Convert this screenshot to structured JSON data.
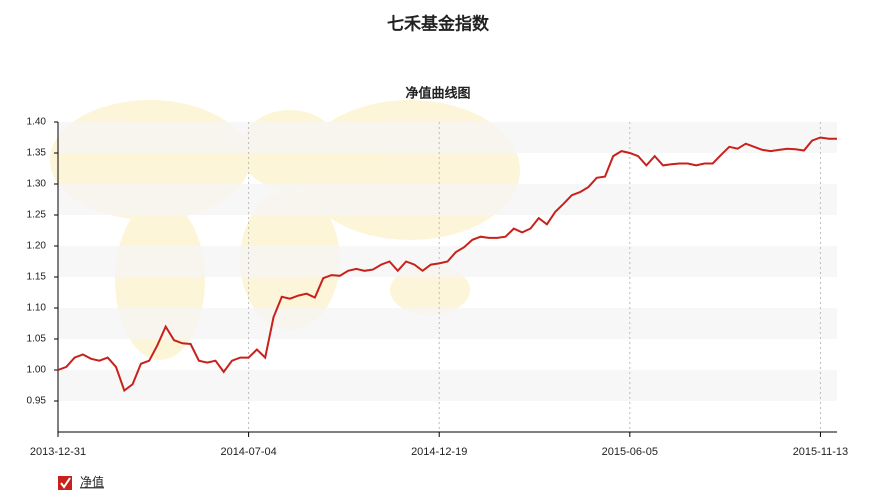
{
  "chart_data": {
    "type": "line",
    "title": "七禾基金指数",
    "subtitle": "净值曲线图",
    "categories": [
      "2013-12-31",
      null,
      null,
      null,
      null,
      null,
      null,
      null,
      null,
      null,
      null,
      null,
      null,
      null,
      null,
      null,
      null,
      null,
      null,
      null,
      null,
      null,
      null,
      "2014-07-04",
      null,
      null,
      null,
      null,
      null,
      null,
      null,
      null,
      null,
      null,
      null,
      null,
      null,
      null,
      null,
      null,
      null,
      null,
      null,
      null,
      null,
      null,
      "2014-12-19",
      null,
      null,
      null,
      null,
      null,
      null,
      null,
      null,
      null,
      null,
      null,
      null,
      null,
      null,
      null,
      null,
      null,
      null,
      null,
      null,
      null,
      null,
      "2015-06-05",
      null,
      null,
      null,
      null,
      null,
      null,
      null,
      null,
      null,
      null,
      null,
      null,
      null,
      null,
      null,
      null,
      null,
      null,
      null,
      null,
      null,
      null,
      "2015-11-13",
      null,
      null
    ],
    "series": [
      {
        "name": "净值",
        "color": "#c8211b",
        "values": [
          1.0,
          1.005,
          1.02,
          1.025,
          1.018,
          1.015,
          1.02,
          1.005,
          0.967,
          0.977,
          1.01,
          1.015,
          1.04,
          1.07,
          1.048,
          1.043,
          1.042,
          1.015,
          1.012,
          1.015,
          0.997,
          1.015,
          1.02,
          1.02,
          1.033,
          1.02,
          1.085,
          1.118,
          1.115,
          1.12,
          1.123,
          1.117,
          1.148,
          1.153,
          1.152,
          1.16,
          1.163,
          1.16,
          1.162,
          1.17,
          1.175,
          1.16,
          1.175,
          1.17,
          1.16,
          1.17,
          1.172,
          1.175,
          1.19,
          1.198,
          1.21,
          1.215,
          1.213,
          1.213,
          1.215,
          1.228,
          1.222,
          1.228,
          1.245,
          1.235,
          1.255,
          1.268,
          1.282,
          1.287,
          1.295,
          1.31,
          1.312,
          1.345,
          1.353,
          1.35,
          1.345,
          1.33,
          1.345,
          1.33,
          1.332,
          1.333,
          1.333,
          1.33,
          1.333,
          1.333,
          1.347,
          1.36,
          1.357,
          1.365,
          1.36,
          1.355,
          1.353,
          1.355,
          1.357,
          1.356,
          1.354,
          1.37,
          1.375,
          1.373,
          1.373
        ]
      }
    ],
    "ylim": [
      0.9,
      1.4
    ],
    "yticks": [
      0.95,
      {
        "value": 1.0,
        "label": "1.00"
      },
      1.05,
      {
        "value": 1.1,
        "label": "1.10"
      },
      1.15,
      {
        "value": 1.2,
        "label": "1.20"
      },
      1.25,
      {
        "value": 1.3,
        "label": "1.30"
      },
      1.35,
      {
        "value": 1.4,
        "label": "1.40"
      }
    ],
    "grid": true
  }
}
